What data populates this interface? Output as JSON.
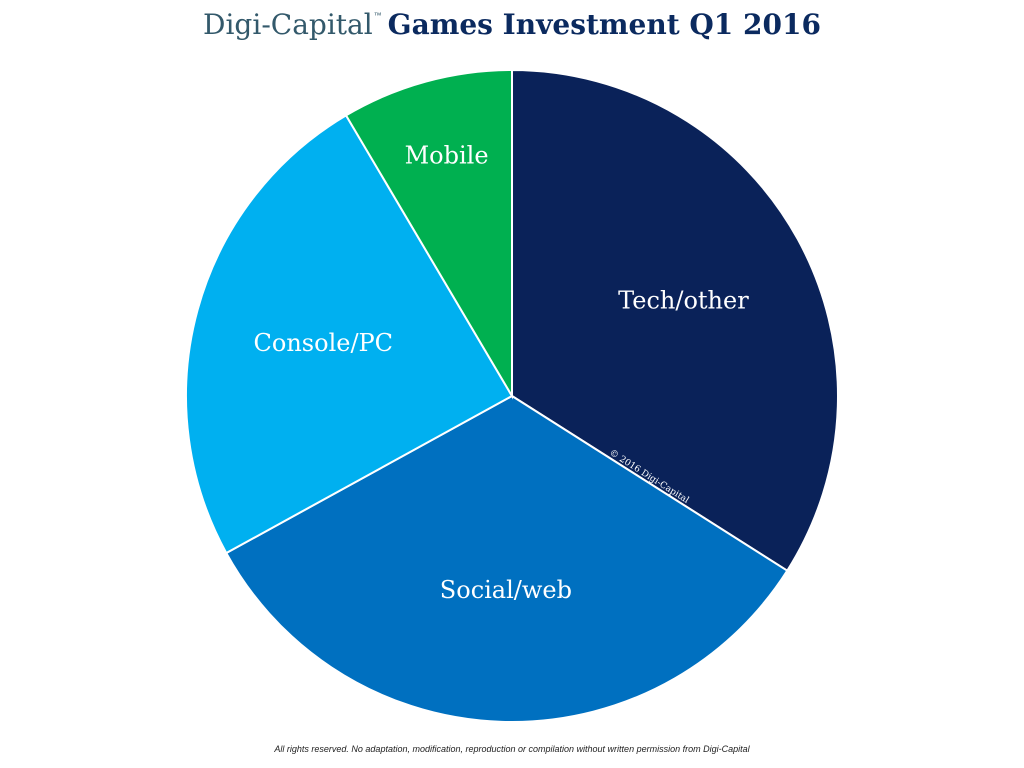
{
  "header": {
    "brand": "Digi-Capital",
    "trademark": "™",
    "title": "Games Investment Q1 2016"
  },
  "chart_data": {
    "type": "pie",
    "title": "Games Investment Q1 2016",
    "unit": "share",
    "start_angle": "12 o'clock",
    "direction": "clockwise",
    "slices": [
      {
        "label": "Tech/other",
        "value": 34.0,
        "color": "#0a2259"
      },
      {
        "label": "Social/web",
        "value": 33.0,
        "color": "#0070c0"
      },
      {
        "label": "Console/PC",
        "value": 24.5,
        "color": "#00b0f0"
      },
      {
        "label": "Mobile",
        "value": 8.5,
        "color": "#00b050"
      }
    ],
    "watermark": "© 2016 Digi-Capital"
  },
  "footer": {
    "text": "All rights reserved. No adaptation, modification, reproduction or compilation without written permission from Digi-Capital"
  }
}
